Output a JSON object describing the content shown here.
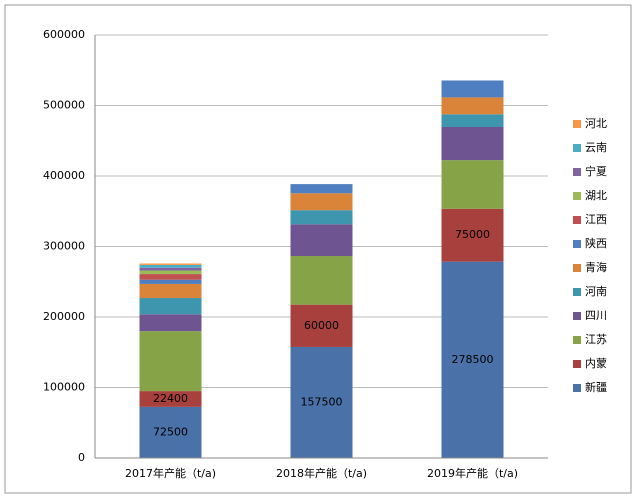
{
  "chart_data": {
    "type": "stacked_bar",
    "categories": [
      "2017年产能（t/a)",
      "2018年产能（t/a)",
      "2019年产能（t/a)"
    ],
    "ylim": [
      0,
      600000
    ],
    "yticks": [
      0,
      100000,
      200000,
      300000,
      400000,
      500000,
      600000
    ],
    "grid": true,
    "legend": "right",
    "series": [
      {
        "name": "新疆",
        "color": "#4A72A8",
        "values": [
          72500,
          157500,
          278500
        ],
        "labeled": true
      },
      {
        "name": "内蒙",
        "color": "#A8413E",
        "values": [
          22400,
          60000,
          75000
        ],
        "labeled": true
      },
      {
        "name": "江苏",
        "color": "#86A348",
        "values": [
          85000,
          69000,
          69000
        ]
      },
      {
        "name": "四川",
        "color": "#6E5591",
        "values": [
          24000,
          45000,
          47000
        ]
      },
      {
        "name": "河南",
        "color": "#3D96AE",
        "values": [
          23000,
          20000,
          18000
        ]
      },
      {
        "name": "青海",
        "color": "#DA843A",
        "values": [
          20000,
          24000,
          24000
        ]
      },
      {
        "name": "陕西",
        "color": "#4F7FC0",
        "values": [
          6000,
          13000,
          24000
        ]
      },
      {
        "name": "江西",
        "color": "#C0504D",
        "values": [
          8000,
          null,
          null
        ]
      },
      {
        "name": "湖北",
        "color": "#9BBB59",
        "values": [
          5000,
          null,
          null
        ]
      },
      {
        "name": "宁夏",
        "color": "#8064A2",
        "values": [
          4000,
          null,
          null
        ]
      },
      {
        "name": "云南",
        "color": "#4BACC6",
        "values": [
          4000,
          null,
          null
        ]
      },
      {
        "name": "河北",
        "color": "#F79646",
        "values": [
          2000,
          null,
          null
        ]
      }
    ]
  }
}
